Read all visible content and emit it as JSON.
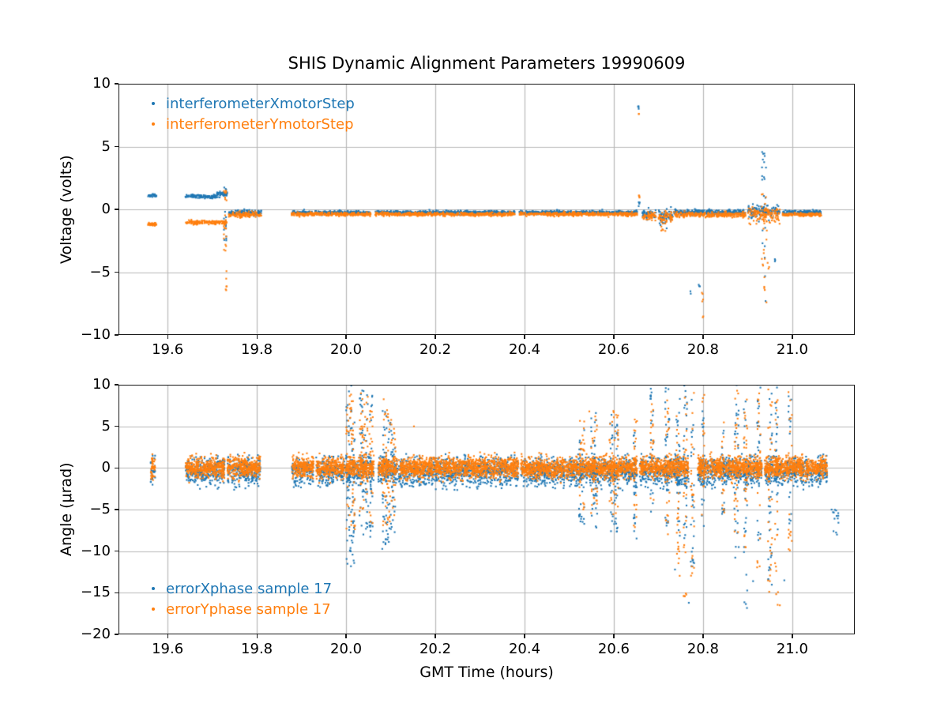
{
  "title": "SHIS Dynamic Alignment Parameters 19990609",
  "colors": {
    "series_blue": "#1f77b4",
    "series_orange": "#ff7f0e",
    "grid": "#b8b8b8",
    "spine": "#1a1a1a",
    "text": "#000000",
    "background": "#ffffff"
  },
  "chart_data": [
    {
      "type": "scatter",
      "ylabel": "Voltage (volts)",
      "xlim": [
        19.49,
        21.14
      ],
      "ylim": [
        -10,
        10
      ],
      "xticks": [
        19.6,
        19.8,
        20.0,
        20.2,
        20.4,
        20.6,
        20.8,
        21.0
      ],
      "xtick_labels": [
        "19.6",
        "19.8",
        "20.0",
        "20.2",
        "20.4",
        "20.6",
        "20.8",
        "21.0"
      ],
      "yticks": [
        10,
        5,
        0,
        -5,
        -10
      ],
      "ytick_labels": [
        "10",
        "5",
        "0",
        "−5",
        "−10"
      ],
      "grid": true,
      "legend": {
        "position": "upper-left",
        "entries": [
          {
            "label": "interferometerXmotorStep",
            "color": "#1f77b4",
            "marker": "dot"
          },
          {
            "label": "interferometerYmotorStep",
            "color": "#ff7f0e",
            "marker": "dot"
          }
        ]
      },
      "segments_format": "[t_start, t_end, level_volts, sigma]",
      "bursts_format": "[t_center, width_hours, y_min, y_max, n_points]",
      "series": [
        {
          "name": "interferometerXmotorStep",
          "color": "#1f77b4",
          "line_density": 1700,
          "segments": [
            [
              19.556,
              19.576,
              1.1,
              0.06
            ],
            [
              19.64,
              19.71,
              1.03,
              0.07
            ],
            [
              19.71,
              19.734,
              1.22,
              0.1
            ],
            [
              19.737,
              19.81,
              -0.27,
              0.09
            ],
            [
              19.878,
              20.055,
              -0.25,
              0.07
            ],
            [
              20.065,
              20.378,
              -0.25,
              0.07
            ],
            [
              20.388,
              20.652,
              -0.25,
              0.07
            ],
            [
              20.664,
              20.695,
              -0.35,
              0.15
            ],
            [
              20.7,
              20.732,
              -0.5,
              0.2
            ],
            [
              20.735,
              20.895,
              -0.22,
              0.1
            ],
            [
              20.9,
              20.972,
              -0.2,
              0.25
            ],
            [
              20.978,
              21.065,
              -0.22,
              0.07
            ]
          ],
          "bursts": [
            [
              19.729,
              0.006,
              -2.6,
              2.1,
              22
            ],
            [
              20.656,
              0.004,
              7.8,
              8.25,
              4
            ],
            [
              20.657,
              0.003,
              0.2,
              0.6,
              3
            ],
            [
              20.71,
              0.02,
              -1.6,
              -0.4,
              10
            ],
            [
              20.772,
              0.003,
              -6.8,
              -6.5,
              2
            ],
            [
              20.792,
              0.004,
              -6.4,
              -5.9,
              3
            ],
            [
              20.937,
              0.012,
              -5.6,
              4.7,
              26
            ],
            [
              20.96,
              0.006,
              -4.2,
              -3.6,
              3
            ]
          ],
          "points": [
            [
              20.657,
              0.45
            ],
            [
              20.94,
              -7.3
            ]
          ]
        },
        {
          "name": "interferometerYmotorStep",
          "color": "#ff7f0e",
          "line_density": 1700,
          "segments": [
            [
              19.556,
              19.576,
              -1.18,
              0.06
            ],
            [
              19.64,
              19.733,
              -1.02,
              0.08
            ],
            [
              19.737,
              19.81,
              -0.42,
              0.1
            ],
            [
              19.878,
              20.055,
              -0.38,
              0.07
            ],
            [
              20.065,
              20.378,
              -0.38,
              0.07
            ],
            [
              20.388,
              20.652,
              -0.38,
              0.07
            ],
            [
              20.664,
              20.695,
              -0.55,
              0.15
            ],
            [
              20.7,
              20.732,
              -0.65,
              0.2
            ],
            [
              20.735,
              20.895,
              -0.42,
              0.1
            ],
            [
              20.9,
              20.972,
              -0.38,
              0.28
            ],
            [
              20.978,
              21.065,
              -0.4,
              0.07
            ]
          ],
          "bursts": [
            [
              19.729,
              0.006,
              -3.6,
              1.6,
              24
            ],
            [
              19.731,
              0.004,
              -6.6,
              -4.4,
              6
            ],
            [
              20.656,
              0.004,
              7.5,
              7.8,
              2
            ],
            [
              20.656,
              0.003,
              0.9,
              1.3,
              3
            ],
            [
              20.71,
              0.02,
              -1.8,
              -0.8,
              8
            ],
            [
              20.798,
              0.004,
              -7.6,
              -6.6,
              4
            ],
            [
              20.8,
              0.002,
              -8.7,
              -8.4,
              2
            ],
            [
              20.937,
              0.012,
              -7.0,
              1.8,
              22
            ],
            [
              20.947,
              0.005,
              -5.0,
              -4.0,
              3
            ]
          ],
          "points": [
            [
              20.656,
              1.1
            ],
            [
              20.942,
              -7.4
            ]
          ]
        }
      ]
    },
    {
      "type": "scatter",
      "ylabel": "Angle (μrad)",
      "xlabel": "GMT Time (hours)",
      "xlim": [
        19.49,
        21.14
      ],
      "ylim": [
        -20,
        10
      ],
      "xticks": [
        19.6,
        19.8,
        20.0,
        20.2,
        20.4,
        20.6,
        20.8,
        21.0
      ],
      "xtick_labels": [
        "19.6",
        "19.8",
        "20.0",
        "20.2",
        "20.4",
        "20.6",
        "20.8",
        "21.0"
      ],
      "yticks": [
        10,
        5,
        0,
        -5,
        -10,
        -15,
        -20
      ],
      "ytick_labels": [
        "10",
        "5",
        "0",
        "−5",
        "−10",
        "−15",
        "−20"
      ],
      "grid": true,
      "legend": {
        "position": "lower-left",
        "entries": [
          {
            "label": "errorXphase sample 17",
            "color": "#1f77b4",
            "marker": "dot"
          },
          {
            "label": "errorYphase sample 17",
            "color": "#ff7f0e",
            "marker": "dot"
          }
        ]
      },
      "band_intervals": [
        [
          19.562,
          19.572
        ],
        [
          19.64,
          19.728
        ],
        [
          19.734,
          19.808
        ],
        [
          19.878,
          19.927
        ],
        [
          19.933,
          19.996
        ],
        [
          19.998,
          20.062
        ],
        [
          20.072,
          20.115
        ],
        [
          20.118,
          20.386
        ],
        [
          20.392,
          20.652
        ],
        [
          20.658,
          20.768
        ],
        [
          20.788,
          20.932
        ],
        [
          20.938,
          21.078
        ]
      ],
      "bursts_format": "[t_center, width_hours, y_min, y_max, n_points]",
      "series": [
        {
          "name": "errorXphase sample 17",
          "color": "#1f77b4",
          "band": {
            "center": -0.4,
            "sigma": 0.85,
            "clip": [
              -2.7,
              1.7
            ],
            "density": 3000
          },
          "bursts": [
            [
              20.01,
              0.02,
              -12.3,
              10.3,
              70
            ],
            [
              20.04,
              0.02,
              -8.0,
              10.3,
              70
            ],
            [
              20.056,
              0.008,
              -9.0,
              9.0,
              26
            ],
            [
              20.09,
              0.018,
              -10.0,
              7.5,
              60
            ],
            [
              20.105,
              0.012,
              -9.0,
              6.0,
              30
            ],
            [
              20.528,
              0.012,
              -7.0,
              5.0,
              35
            ],
            [
              20.556,
              0.014,
              -7.5,
              7.0,
              40
            ],
            [
              20.6,
              0.02,
              -8.0,
              6.5,
              50
            ],
            [
              20.648,
              0.008,
              -8.5,
              5.0,
              25
            ],
            [
              20.686,
              0.008,
              -6.0,
              10.3,
              25
            ],
            [
              20.72,
              0.01,
              -9.5,
              10.3,
              35
            ],
            [
              20.744,
              0.008,
              -9.0,
              9.0,
              28
            ],
            [
              20.76,
              0.008,
              -10.0,
              10.3,
              30
            ],
            [
              20.776,
              0.008,
              -12.0,
              9.0,
              28
            ],
            [
              20.8,
              0.006,
              -7.0,
              8.0,
              18
            ],
            [
              20.845,
              0.006,
              -6.5,
              7.0,
              16
            ],
            [
              20.875,
              0.01,
              -12.0,
              10.3,
              32
            ],
            [
              20.895,
              0.008,
              -17.3,
              8.0,
              24
            ],
            [
              20.925,
              0.008,
              -9.0,
              10.3,
              26
            ],
            [
              20.95,
              0.01,
              -15.0,
              9.0,
              30
            ],
            [
              20.965,
              0.008,
              -8.0,
              10.3,
              22
            ],
            [
              20.995,
              0.008,
              -8.0,
              9.0,
              22
            ],
            [
              21.095,
              0.018,
              -8.0,
              -4.5,
              12
            ]
          ],
          "points": [
            [
              20.737,
              -12.2
            ],
            [
              20.912,
              -13.6
            ],
            [
              20.768,
              -16.2
            ],
            [
              21.088,
              -5.0
            ],
            [
              21.1,
              -8.0
            ],
            [
              20.982,
              -13.5
            ]
          ]
        },
        {
          "name": "errorYphase sample 17",
          "color": "#ff7f0e",
          "band": {
            "center": 0.05,
            "sigma": 0.62,
            "clip": [
              -1.9,
              1.9
            ],
            "density": 4300
          },
          "bursts": [
            [
              20.01,
              0.02,
              -8.0,
              9.5,
              60
            ],
            [
              20.04,
              0.02,
              -5.5,
              9.0,
              60
            ],
            [
              20.056,
              0.008,
              -7.0,
              8.0,
              22
            ],
            [
              20.09,
              0.018,
              -7.0,
              8.5,
              50
            ],
            [
              20.105,
              0.012,
              -6.0,
              7.0,
              26
            ],
            [
              20.528,
              0.012,
              -5.0,
              6.0,
              30
            ],
            [
              20.556,
              0.014,
              -5.5,
              6.5,
              34
            ],
            [
              20.6,
              0.02,
              -6.0,
              7.0,
              44
            ],
            [
              20.648,
              0.008,
              -7.5,
              6.0,
              22
            ],
            [
              20.686,
              0.008,
              -5.0,
              8.5,
              20
            ],
            [
              20.72,
              0.01,
              -8.0,
              10.3,
              30
            ],
            [
              20.744,
              0.008,
              -13.0,
              8.0,
              26
            ],
            [
              20.76,
              0.008,
              -15.5,
              9.0,
              28
            ],
            [
              20.776,
              0.008,
              -14.0,
              10.3,
              26
            ],
            [
              20.8,
              0.006,
              -6.0,
              9.0,
              16
            ],
            [
              20.845,
              0.006,
              -5.5,
              8.0,
              14
            ],
            [
              20.875,
              0.01,
              -9.0,
              10.3,
              28
            ],
            [
              20.895,
              0.008,
              -10.0,
              9.0,
              22
            ],
            [
              20.925,
              0.008,
              -12.0,
              10.3,
              24
            ],
            [
              20.95,
              0.01,
              -15.2,
              10.0,
              28
            ],
            [
              20.965,
              0.008,
              -16.6,
              9.0,
              20
            ],
            [
              20.995,
              0.008,
              -10.0,
              9.5,
              22
            ]
          ],
          "points": [
            [
              20.152,
              5.0
            ],
            [
              20.758,
              -15.4
            ],
            [
              20.972,
              -16.5
            ],
            [
              20.545,
              6.8
            ]
          ]
        }
      ]
    }
  ]
}
